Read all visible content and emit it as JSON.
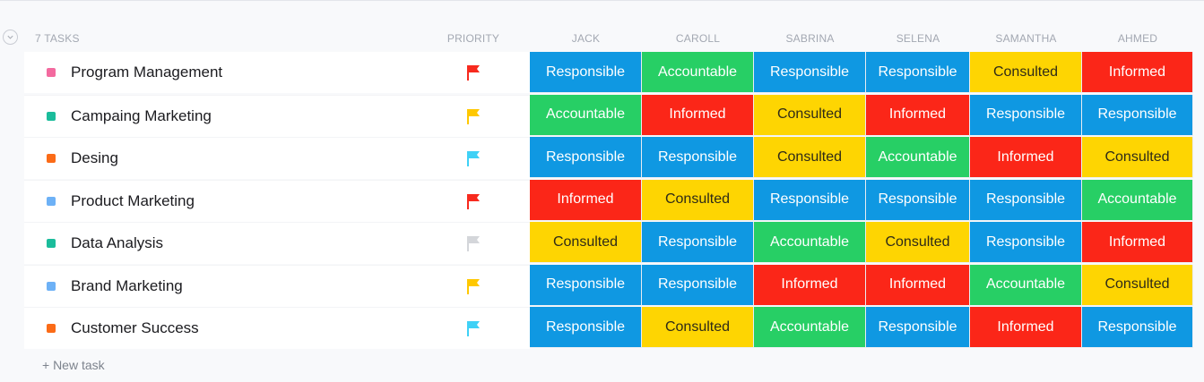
{
  "header": {
    "task_count": "7 TASKS",
    "priority": "PRIORITY",
    "people": [
      "JACK",
      "CAROLL",
      "SABRINA",
      "SELENA",
      "SAMANTHA",
      "AHMED"
    ]
  },
  "role_colors": {
    "Responsible": "#0f98e2",
    "Accountable": "#27cf65",
    "Consulted": "#fed502",
    "Informed": "#fb2618"
  },
  "priority_colors": {
    "urgent": "#f72a1e",
    "high": "#ffc800",
    "normal": "#3fd1f6",
    "low": "#d4d6da"
  },
  "tasks": [
    {
      "name": "Program Management",
      "color": "#f36a9f",
      "priority": "urgent",
      "roles": [
        "Responsible",
        "Accountable",
        "Responsible",
        "Responsible",
        "Consulted",
        "Informed"
      ]
    },
    {
      "name": "Campaing Marketing",
      "color": "#1bbc9b",
      "priority": "high",
      "roles": [
        "Accountable",
        "Informed",
        "Consulted",
        "Informed",
        "Responsible",
        "Responsible"
      ]
    },
    {
      "name": "Desing",
      "color": "#fb6b17",
      "priority": "normal",
      "roles": [
        "Responsible",
        "Responsible",
        "Consulted",
        "Accountable",
        "Informed",
        "Consulted"
      ]
    },
    {
      "name": "Product Marketing",
      "color": "#6db1f6",
      "priority": "urgent",
      "roles": [
        "Informed",
        "Consulted",
        "Responsible",
        "Responsible",
        "Responsible",
        "Accountable"
      ]
    },
    {
      "name": "Data Analysis",
      "color": "#1bbc9b",
      "priority": "low",
      "roles": [
        "Consulted",
        "Responsible",
        "Accountable",
        "Consulted",
        "Responsible",
        "Informed"
      ]
    },
    {
      "name": "Brand Marketing",
      "color": "#6db1f6",
      "priority": "high",
      "roles": [
        "Responsible",
        "Responsible",
        "Informed",
        "Informed",
        "Accountable",
        "Consulted"
      ]
    },
    {
      "name": "Customer Success",
      "color": "#fb6b17",
      "priority": "normal",
      "roles": [
        "Responsible",
        "Consulted",
        "Accountable",
        "Responsible",
        "Informed",
        "Responsible"
      ]
    }
  ],
  "footer": {
    "new_task": "+ New task"
  }
}
